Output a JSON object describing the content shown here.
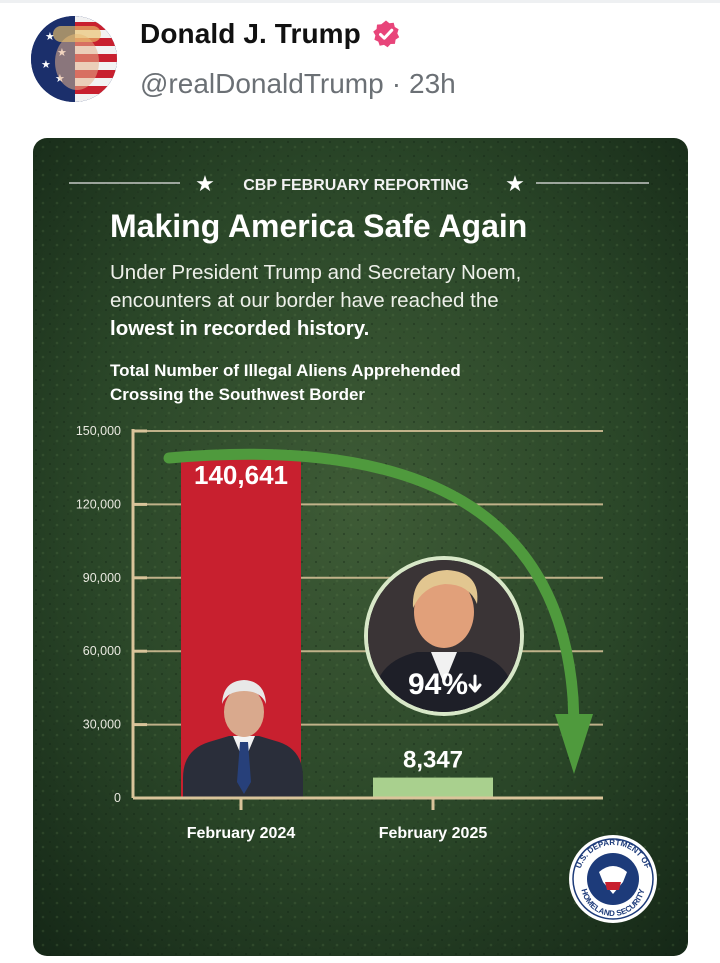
{
  "post": {
    "display_name": "Donald J. Trump",
    "handle": "@realDonaldTrump",
    "separator": "·",
    "age": "23h",
    "verified_icon": "verified-badge-icon",
    "colors": {
      "verified": "#e8457a",
      "name": "#111111",
      "handle": "#6b7075"
    }
  },
  "graphic": {
    "kicker": "CBP FEBRUARY REPORTING",
    "headline": "Making America Safe Again",
    "subhead_line1": "Under President Trump and Secretary Noem,",
    "subhead_line2": "encounters at our border have reached the",
    "subhead_bold": "lowest in recorded history.",
    "chart_heading_line1": "Total Number of Illegal Aliens Apprehended",
    "chart_heading_line2": "Crossing the Southwest Border",
    "badge": "94%",
    "seal_top": "U.S. DEPARTMENT OF",
    "seal_bottom": "HOMELAND SECURITY",
    "colors": {
      "background": "#1f3a22",
      "bar_2024": "#c8202f",
      "bar_2025": "#a9d08e",
      "arrow": "#4f9a3d",
      "axis": "#d9c49a"
    }
  },
  "chart_data": {
    "type": "bar",
    "title": "Total Number of Illegal Aliens Apprehended Crossing the Southwest Border",
    "categories": [
      "February 2024",
      "February 2025"
    ],
    "values": [
      140641,
      8347
    ],
    "value_labels": [
      "140,641",
      "8,347"
    ],
    "yticks": [
      0,
      30000,
      60000,
      90000,
      120000,
      150000
    ],
    "ytick_labels": [
      "0",
      "30,000",
      "60,000",
      "90,000",
      "120,000",
      "150,000"
    ],
    "ylim": [
      0,
      150000
    ],
    "xlabel": "",
    "ylabel": ""
  }
}
